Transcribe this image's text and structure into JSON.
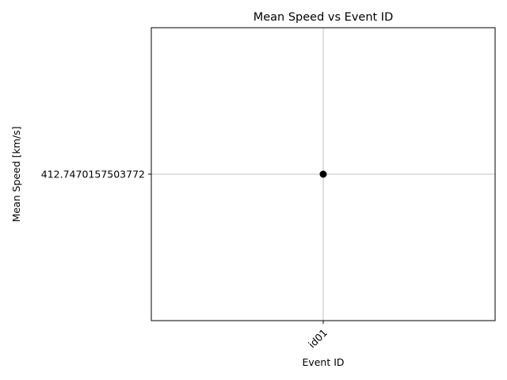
{
  "chart_data": {
    "type": "scatter",
    "title": "Mean Speed vs Event ID",
    "xlabel": "Event ID",
    "ylabel": "Mean Speed [km/s]",
    "categories": [
      "id01"
    ],
    "values": [
      412.7470157503772
    ],
    "y_tick_labels": [
      "412.7470157503772"
    ],
    "grid": true,
    "marker_color": "#000000",
    "grid_color": "#b0b0b0",
    "x_tick_rotation": 45
  }
}
